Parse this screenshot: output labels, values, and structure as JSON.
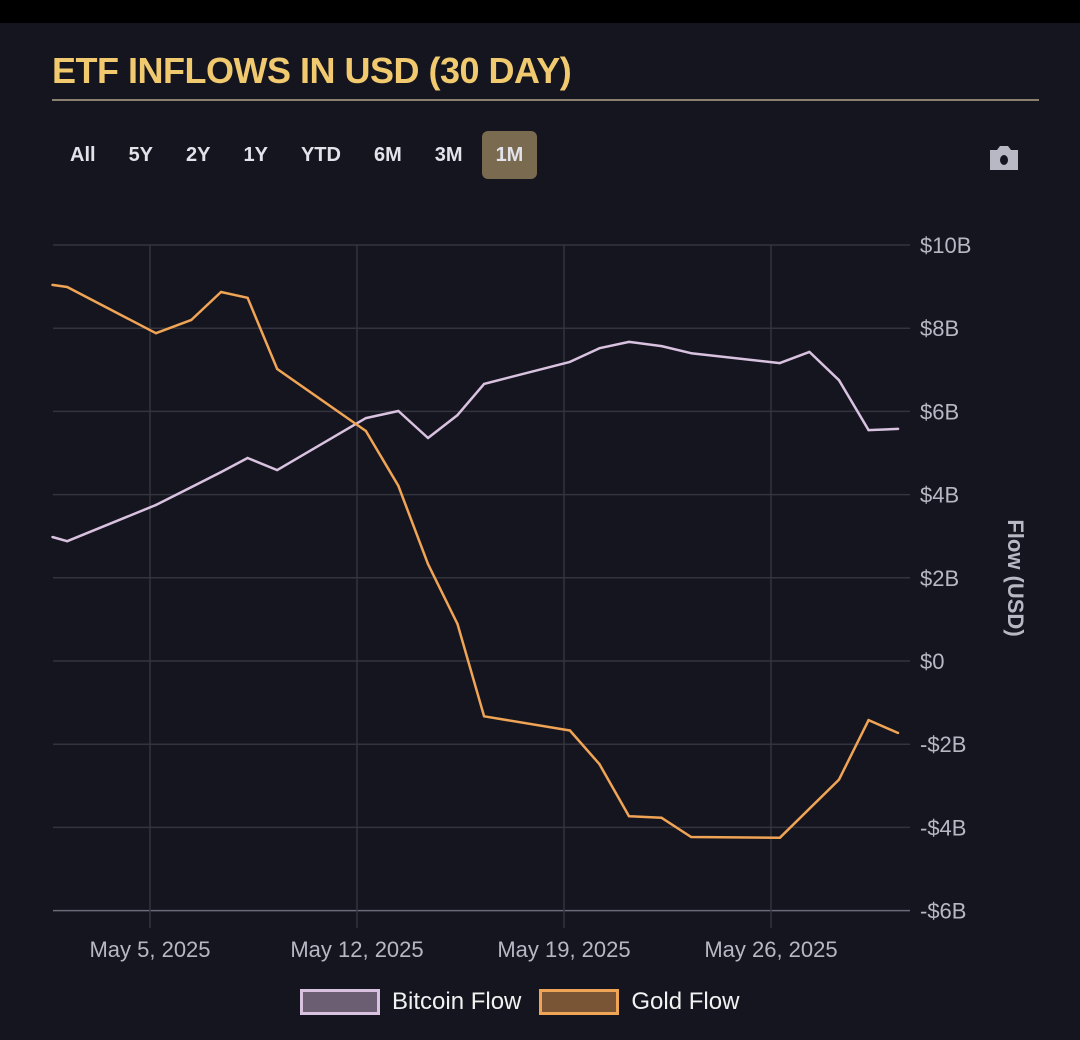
{
  "title": "ETF INFLOWS IN USD (30 DAY)",
  "range_buttons": [
    "All",
    "5Y",
    "2Y",
    "1Y",
    "YTD",
    "6M",
    "3M",
    "1M"
  ],
  "active_range": "1M",
  "camera_icon": "camera-icon",
  "colors": {
    "bitcoin": "#d8c2e0",
    "gold": "#f0a455",
    "title": "#f1c96f"
  },
  "chart_data": {
    "type": "line",
    "title": "ETF INFLOWS IN USD (30 DAY)",
    "xlabel": "",
    "ylabel": "Flow (USD)",
    "x_unit": "day of May 2025",
    "xlim": [
      1.7,
      30.3
    ],
    "ylim": [
      -6,
      10
    ],
    "grid": true,
    "legend_position": "bottom",
    "x_ticks": [
      {
        "day": 5,
        "label": "May 5, 2025"
      },
      {
        "day": 12,
        "label": "May 12, 2025"
      },
      {
        "day": 19,
        "label": "May 19, 2025"
      },
      {
        "day": 26,
        "label": "May 26, 2025"
      }
    ],
    "y_ticks": [
      {
        "value": 10,
        "label": "$10B"
      },
      {
        "value": 8,
        "label": "$8B"
      },
      {
        "value": 6,
        "label": "$6B"
      },
      {
        "value": 4,
        "label": "$4B"
      },
      {
        "value": 2,
        "label": "$2B"
      },
      {
        "value": 0,
        "label": "$0"
      },
      {
        "value": -2,
        "label": "-$2B"
      },
      {
        "value": -4,
        "label": "-$4B"
      },
      {
        "value": -6,
        "label": "-$6B"
      }
    ],
    "series": [
      {
        "name": "Bitcoin Flow",
        "unit": "USD billions",
        "x": [
          1.7,
          2.2,
          5.2,
          6.4,
          7.4,
          8.3,
          9.3,
          12.3,
          13.4,
          14.4,
          15.4,
          16.3,
          19.2,
          20.2,
          21.2,
          22.3,
          23.3,
          26.3,
          27.3,
          28.3,
          29.3,
          30.3
        ],
        "y": [
          2.98,
          2.88,
          3.75,
          4.18,
          4.54,
          4.88,
          4.59,
          5.84,
          6.01,
          5.36,
          5.91,
          6.66,
          7.19,
          7.52,
          7.67,
          7.57,
          7.4,
          7.16,
          7.43,
          6.75,
          5.55,
          5.58
        ]
      },
      {
        "name": "Gold Flow",
        "unit": "USD billions",
        "x": [
          1.7,
          2.2,
          5.2,
          6.4,
          7.4,
          8.3,
          9.3,
          12.3,
          13.4,
          14.4,
          15.4,
          16.3,
          19.2,
          20.2,
          21.2,
          22.3,
          23.3,
          26.3,
          28.3,
          29.3,
          30.3
        ],
        "y": [
          9.04,
          8.99,
          7.88,
          8.2,
          8.87,
          8.73,
          7.02,
          5.53,
          4.21,
          2.33,
          0.89,
          -1.33,
          -1.67,
          -2.48,
          -3.73,
          -3.77,
          -4.23,
          -4.25,
          -2.85,
          -1.42,
          -1.73
        ]
      }
    ]
  }
}
